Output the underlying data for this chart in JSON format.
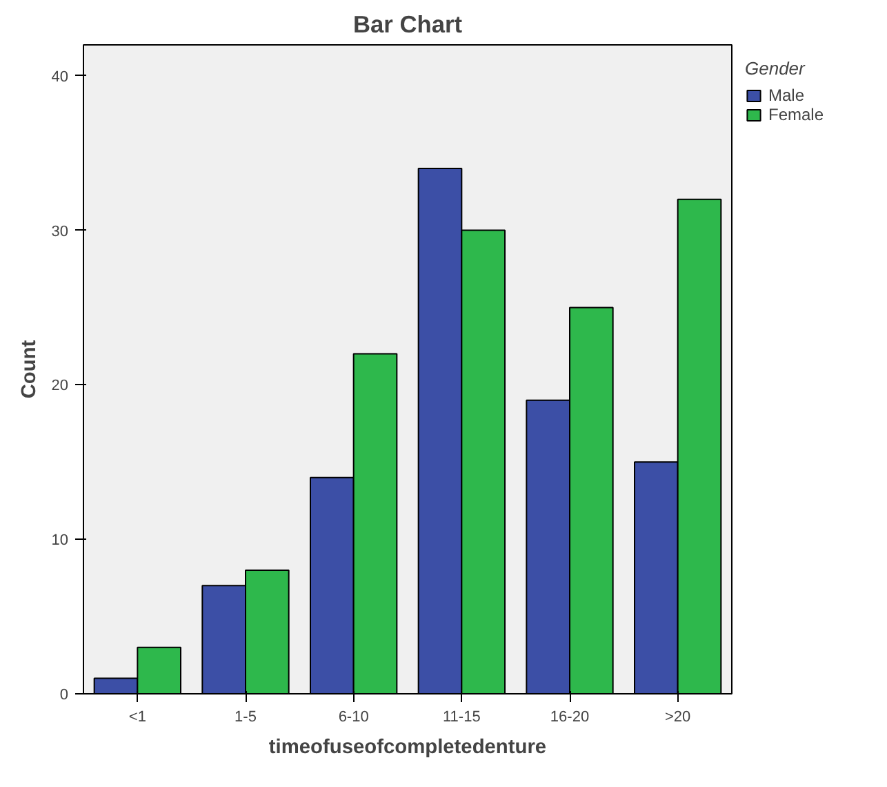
{
  "chart_data": {
    "type": "bar",
    "title": "Bar Chart",
    "xlabel": "timeofuseofcompletedenture",
    "ylabel": "Count",
    "legend_title": "Gender",
    "categories": [
      "<1",
      "1-5",
      "6-10",
      "11-15",
      "16-20",
      ">20"
    ],
    "series": [
      {
        "name": "Male",
        "color": "#3c4fa6",
        "values": [
          1,
          7,
          14,
          34,
          19,
          15
        ]
      },
      {
        "name": "Female",
        "color": "#2eb84c",
        "values": [
          3,
          8,
          22,
          30,
          25,
          32
        ]
      }
    ],
    "ylim": [
      0,
      42
    ],
    "yticks": [
      0,
      10,
      20,
      30,
      40
    ],
    "grid": false,
    "legend": "top right"
  }
}
